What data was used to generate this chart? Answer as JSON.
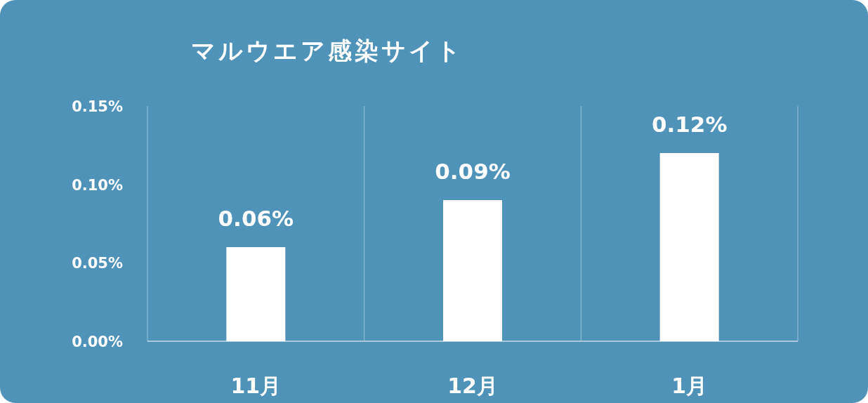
{
  "chart_data": {
    "type": "bar",
    "title": "マルウエア感染サイト",
    "categories": [
      "11月",
      "12月",
      "1月"
    ],
    "values": [
      0.06,
      0.09,
      0.12
    ],
    "value_labels": [
      "0.06%",
      "0.09%",
      "0.12%"
    ],
    "color": "#ffffff",
    "ylim": [
      0,
      0.15
    ],
    "yticks": [
      {
        "value": 0,
        "label": "0.00%"
      },
      {
        "value": 0.05,
        "label": "0.05%"
      },
      {
        "value": 0.1,
        "label": "0.10%"
      },
      {
        "value": 0.15,
        "label": "0.15%"
      }
    ],
    "grid": "x"
  }
}
